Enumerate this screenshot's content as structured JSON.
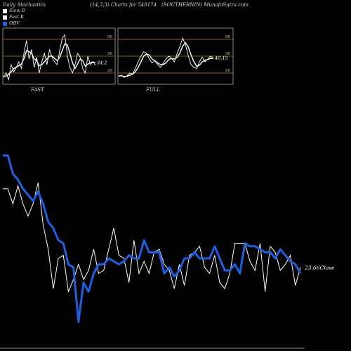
{
  "header": {
    "left": "Daily Stochastics",
    "center": "(14,3,3) Charts for 540174",
    "right": "(SOUTHERNIN) MunafaSutra.com"
  },
  "legend": [
    {
      "label": "Slow  D",
      "color": "#ffffff"
    },
    {
      "label": "Fast K",
      "color": "#ffffff"
    },
    {
      "label": "OBV",
      "color": "#1f5fe0"
    }
  ],
  "panels": {
    "fast_label": "FAST",
    "full_label": "FULL",
    "fast_value": "34.2",
    "full_value": "46.15",
    "levels": [
      "80",
      "50",
      "20"
    ]
  },
  "main": {
    "close_label": "23.66Close"
  },
  "chart_data": [
    {
      "type": "line",
      "title": "FAST",
      "ylim": [
        0,
        100
      ],
      "levels": [
        20,
        50,
        80
      ],
      "series": [
        {
          "name": "Fast K",
          "values": [
            12,
            20,
            8,
            35,
            22,
            30,
            40,
            28,
            55,
            78,
            45,
            62,
            30,
            48,
            20,
            40,
            55,
            35,
            62,
            48,
            40,
            35,
            60,
            82,
            88,
            50,
            30,
            20,
            35,
            55,
            48,
            28,
            20,
            50,
            35,
            40,
            34
          ]
        },
        {
          "name": "Slow  D",
          "values": [
            15,
            14,
            18,
            22,
            28,
            30,
            33,
            36,
            45,
            60,
            58,
            55,
            45,
            42,
            33,
            35,
            40,
            45,
            50,
            50,
            46,
            42,
            48,
            60,
            72,
            70,
            55,
            38,
            28,
            36,
            45,
            42,
            32,
            36,
            38,
            40,
            38
          ]
        }
      ]
    },
    {
      "type": "line",
      "title": "FULL",
      "ylim": [
        0,
        100
      ],
      "levels": [
        20,
        50,
        80
      ],
      "series": [
        {
          "name": "Fast K",
          "values": [
            14,
            16,
            12,
            15,
            20,
            18,
            28,
            40,
            50,
            58,
            55,
            45,
            38,
            42,
            35,
            30,
            38,
            45,
            50,
            46,
            40,
            55,
            68,
            82,
            70,
            50,
            35,
            30,
            28,
            40,
            48,
            40,
            45,
            50,
            46
          ]
        },
        {
          "name": "Slow  D",
          "values": [
            15,
            15,
            14,
            14,
            16,
            18,
            22,
            30,
            40,
            50,
            54,
            52,
            45,
            42,
            38,
            35,
            35,
            38,
            44,
            46,
            45,
            48,
            56,
            68,
            74,
            66,
            52,
            40,
            32,
            34,
            40,
            43,
            44,
            46,
            46
          ]
        }
      ]
    },
    {
      "type": "line",
      "title": "",
      "series": [
        {
          "name": "Price",
          "values": [
            49,
            49,
            44,
            50,
            44,
            40,
            44,
            51,
            37,
            29,
            16,
            26,
            27,
            15,
            19,
            24,
            19,
            22,
            29,
            21,
            22,
            29,
            36,
            27,
            26,
            18,
            32,
            21,
            25,
            21,
            28,
            29,
            24,
            22,
            16,
            24,
            17,
            27,
            28,
            30,
            23,
            21,
            27,
            18,
            16,
            21,
            31,
            31,
            31,
            25,
            22,
            31,
            15,
            30,
            28,
            22,
            24,
            27,
            17,
            23
          ]
        },
        {
          "name": "OBV",
          "values": [
            60,
            60,
            54,
            52,
            49,
            47,
            45,
            48,
            44,
            38,
            36,
            32,
            31,
            24,
            23,
            5,
            18,
            15,
            21,
            24,
            24,
            26,
            25,
            24,
            25,
            27,
            26,
            26,
            32,
            28,
            28,
            28,
            21,
            23,
            20,
            22,
            26,
            26,
            28,
            26,
            26,
            26,
            30,
            26,
            22,
            22,
            24,
            21,
            31,
            30,
            30,
            29,
            28,
            28,
            26,
            29,
            27,
            25,
            24,
            21
          ]
        }
      ]
    }
  ]
}
